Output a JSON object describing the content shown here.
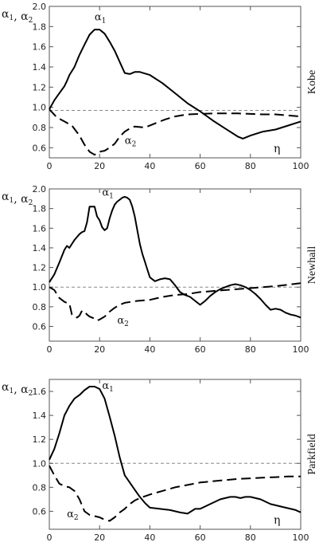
{
  "chart_data": [
    {
      "type": "line",
      "panel_label": "Kobe",
      "ylabel": "α1, α2",
      "xlabel": "η",
      "xlim": [
        0,
        100
      ],
      "ylim": [
        0.5,
        2.0
      ],
      "xticks": [
        0,
        20,
        40,
        60,
        80,
        100
      ],
      "yticks": [
        0.6,
        0.8,
        1.0,
        1.2,
        1.4,
        1.6,
        1.8,
        2.0
      ],
      "reference_line": 0.97,
      "series": [
        {
          "name": "α1",
          "style": "solid",
          "label_at": [
            18,
            1.86
          ],
          "x": [
            0,
            2,
            4,
            6,
            7,
            8,
            9,
            10,
            12,
            14,
            16,
            18,
            20,
            22,
            24,
            26,
            28,
            30,
            32,
            34,
            36,
            40,
            45,
            50,
            55,
            60,
            65,
            70,
            75,
            77,
            80,
            85,
            90,
            95,
            100
          ],
          "y": [
            0.98,
            1.07,
            1.14,
            1.21,
            1.26,
            1.32,
            1.36,
            1.4,
            1.52,
            1.62,
            1.72,
            1.77,
            1.77,
            1.73,
            1.65,
            1.56,
            1.45,
            1.34,
            1.33,
            1.35,
            1.35,
            1.32,
            1.24,
            1.14,
            1.04,
            0.96,
            0.87,
            0.79,
            0.71,
            0.69,
            0.72,
            0.76,
            0.78,
            0.82,
            0.86
          ]
        },
        {
          "name": "α2",
          "style": "dashed",
          "label_at": [
            30,
            0.64
          ],
          "x": [
            0,
            3,
            6,
            9,
            12,
            14,
            16,
            18,
            20,
            22,
            24,
            26,
            28,
            30,
            32,
            34,
            38,
            42,
            46,
            50,
            55,
            60,
            65,
            70,
            75,
            80,
            85,
            90,
            95,
            100
          ],
          "y": [
            0.98,
            0.9,
            0.86,
            0.82,
            0.72,
            0.63,
            0.56,
            0.53,
            0.56,
            0.57,
            0.6,
            0.64,
            0.71,
            0.76,
            0.79,
            0.81,
            0.8,
            0.84,
            0.88,
            0.91,
            0.93,
            0.935,
            0.94,
            0.94,
            0.94,
            0.935,
            0.93,
            0.93,
            0.92,
            0.91
          ]
        }
      ]
    },
    {
      "type": "line",
      "panel_label": "Newhall",
      "ylabel": "α1, α2",
      "xlabel": "",
      "xlim": [
        0,
        100
      ],
      "ylim": [
        0.45,
        2.0
      ],
      "xticks": [
        0,
        20,
        40,
        60,
        80,
        100
      ],
      "yticks": [
        0.6,
        0.8,
        1.0,
        1.2,
        1.4,
        1.6,
        1.8,
        2.0
      ],
      "reference_line": 1.0,
      "series": [
        {
          "name": "α1",
          "style": "solid",
          "label_at": [
            21,
            1.93
          ],
          "x": [
            0,
            2,
            4,
            6,
            7,
            8,
            9,
            10,
            11,
            12,
            13,
            14,
            15,
            16,
            17,
            18,
            19,
            20,
            21,
            22,
            23,
            24,
            25,
            26,
            27,
            28,
            29,
            30,
            31,
            32,
            33,
            34,
            35,
            36,
            37,
            38,
            39,
            40,
            42,
            44,
            46,
            48,
            50,
            52,
            54,
            56,
            58,
            60,
            62,
            64,
            66,
            68,
            70,
            72,
            74,
            76,
            78,
            80,
            82,
            84,
            86,
            88,
            90,
            92,
            94,
            96,
            98,
            100
          ],
          "y": [
            1.05,
            1.13,
            1.25,
            1.38,
            1.42,
            1.4,
            1.44,
            1.48,
            1.51,
            1.54,
            1.56,
            1.57,
            1.66,
            1.82,
            1.82,
            1.82,
            1.72,
            1.68,
            1.61,
            1.58,
            1.6,
            1.7,
            1.78,
            1.84,
            1.87,
            1.89,
            1.91,
            1.92,
            1.91,
            1.89,
            1.82,
            1.72,
            1.58,
            1.44,
            1.34,
            1.26,
            1.18,
            1.1,
            1.06,
            1.08,
            1.09,
            1.08,
            1.02,
            0.95,
            0.92,
            0.9,
            0.86,
            0.82,
            0.86,
            0.91,
            0.95,
            0.98,
            1.0,
            1.02,
            1.03,
            1.02,
            1.0,
            0.97,
            0.93,
            0.88,
            0.82,
            0.77,
            0.78,
            0.77,
            0.74,
            0.72,
            0.71,
            0.69
          ]
        },
        {
          "name": "α2",
          "style": "dashed",
          "label_at": [
            27,
            0.63
          ],
          "x": [
            0,
            2,
            4,
            6,
            8,
            9,
            10,
            11,
            12,
            13,
            14,
            15,
            16,
            17,
            18,
            19,
            20,
            22,
            24,
            26,
            28,
            30,
            35,
            40,
            45,
            50,
            55,
            60,
            70,
            80,
            90,
            100
          ],
          "y": [
            1.0,
            0.97,
            0.89,
            0.85,
            0.83,
            0.72,
            0.7,
            0.69,
            0.71,
            0.76,
            0.75,
            0.72,
            0.7,
            0.69,
            0.68,
            0.66,
            0.67,
            0.7,
            0.75,
            0.79,
            0.82,
            0.84,
            0.86,
            0.87,
            0.9,
            0.92,
            0.93,
            0.95,
            0.97,
            0.99,
            1.01,
            1.04
          ]
        }
      ]
    },
    {
      "type": "line",
      "panel_label": "Parkfield",
      "ylabel": "α1, α2",
      "xlabel": "η",
      "xlim": [
        0,
        100
      ],
      "ylim": [
        0.45,
        1.7
      ],
      "xticks": [
        0,
        20,
        40,
        60,
        80,
        100
      ],
      "yticks": [
        0.6,
        0.8,
        1.0,
        1.2,
        1.4,
        1.6
      ],
      "reference_line": 1.0,
      "series": [
        {
          "name": "α1",
          "style": "solid",
          "label_at": [
            21,
            1.62
          ],
          "x": [
            0,
            2,
            4,
            6,
            8,
            10,
            12,
            14,
            16,
            18,
            20,
            22,
            24,
            26,
            28,
            30,
            32,
            34,
            36,
            38,
            40,
            44,
            48,
            52,
            55,
            58,
            60,
            62,
            64,
            66,
            68,
            70,
            72,
            74,
            76,
            78,
            80,
            82,
            84,
            86,
            88,
            90,
            92,
            94,
            96,
            98,
            100
          ],
          "y": [
            1.03,
            1.12,
            1.25,
            1.4,
            1.48,
            1.54,
            1.57,
            1.61,
            1.64,
            1.64,
            1.62,
            1.54,
            1.39,
            1.23,
            1.05,
            0.9,
            0.84,
            0.78,
            0.72,
            0.67,
            0.63,
            0.62,
            0.61,
            0.59,
            0.58,
            0.62,
            0.62,
            0.64,
            0.66,
            0.68,
            0.7,
            0.71,
            0.72,
            0.72,
            0.71,
            0.72,
            0.72,
            0.71,
            0.7,
            0.68,
            0.66,
            0.65,
            0.64,
            0.63,
            0.62,
            0.61,
            0.59
          ]
        },
        {
          "name": "α2",
          "style": "dashed",
          "label_at": [
            7,
            0.55
          ],
          "x": [
            0,
            2,
            4,
            6,
            8,
            10,
            12,
            14,
            16,
            18,
            20,
            22,
            24,
            26,
            28,
            30,
            32,
            34,
            36,
            40,
            45,
            50,
            55,
            60,
            65,
            70,
            75,
            80,
            85,
            90,
            95,
            100
          ],
          "y": [
            0.98,
            0.9,
            0.83,
            0.81,
            0.8,
            0.77,
            0.7,
            0.6,
            0.57,
            0.56,
            0.55,
            0.53,
            0.52,
            0.55,
            0.59,
            0.62,
            0.66,
            0.69,
            0.71,
            0.74,
            0.77,
            0.8,
            0.82,
            0.84,
            0.85,
            0.86,
            0.87,
            0.875,
            0.88,
            0.885,
            0.89,
            0.89
          ]
        }
      ]
    }
  ]
}
